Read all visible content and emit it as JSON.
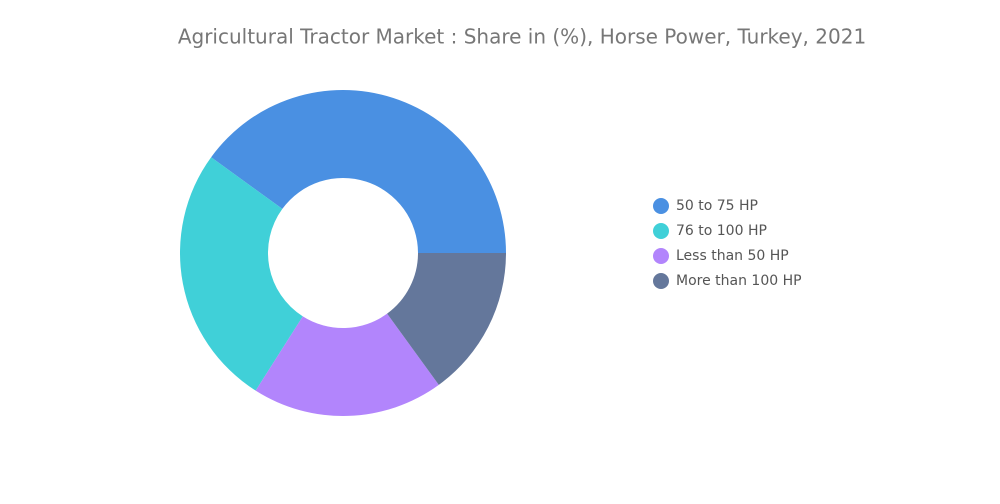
{
  "chart_data": {
    "type": "donut",
    "title": "Agricultural Tractor Market : Share in (%), Horse Power, Turkey, 2021",
    "categories": [
      "50 to 75 HP",
      "76 to 100 HP",
      "Less than 50 HP",
      "More than 100 HP"
    ],
    "values": [
      40,
      26,
      19,
      15
    ],
    "colors": [
      "#4a90e2",
      "#40d0d8",
      "#b285fc",
      "#64779b"
    ],
    "legend": "right"
  }
}
